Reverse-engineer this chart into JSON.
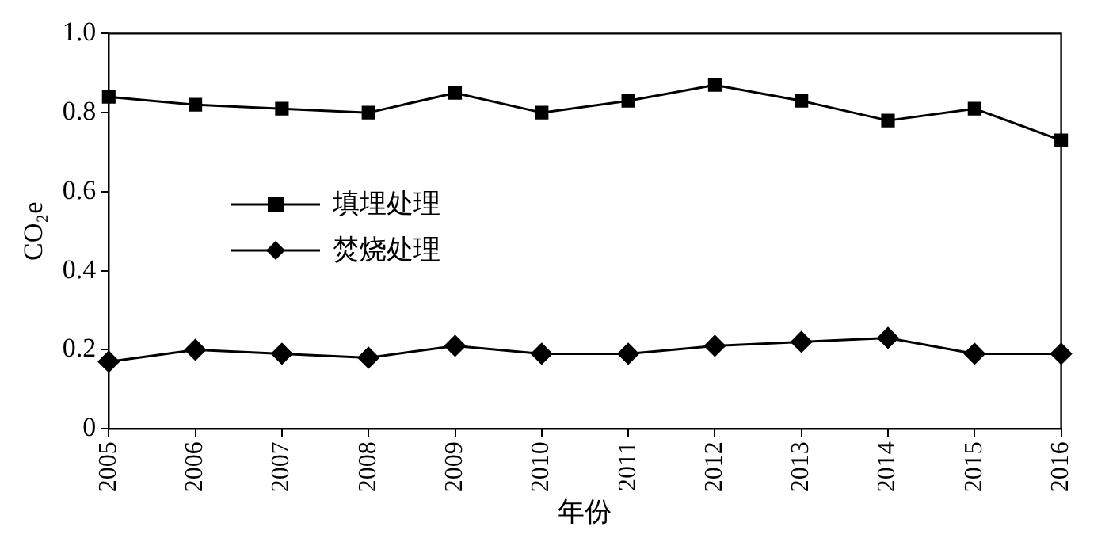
{
  "chart_data": {
    "type": "line",
    "xlabel": "年份",
    "ylabel": "CO₂e",
    "categories": [
      "2005",
      "2006",
      "2007",
      "2008",
      "2009",
      "2010",
      "2011",
      "2012",
      "2013",
      "2014",
      "2015",
      "2016"
    ],
    "ylim": [
      0,
      1.0
    ],
    "yticks": [
      0,
      {
        "value": 0.2,
        "label": "0.2"
      },
      {
        "value": 0.4,
        "label": "0.4"
      },
      {
        "value": 0.6,
        "label": "0.6"
      },
      {
        "value": 0.8,
        "label": "0.8"
      },
      {
        "value": 1.0,
        "label": "1.0"
      }
    ],
    "grid": false,
    "legend": "left",
    "line_style": "solid",
    "series": [
      {
        "name": "填埋处理",
        "color": "#000000",
        "marker": "square",
        "values": [
          0.84,
          0.82,
          0.81,
          0.8,
          0.85,
          0.8,
          0.83,
          0.87,
          0.83,
          0.78,
          0.81,
          0.73
        ]
      },
      {
        "name": "焚烧处理",
        "color": "#000000",
        "marker": "diamond",
        "values": [
          0.17,
          0.2,
          0.19,
          0.18,
          0.21,
          0.19,
          0.19,
          0.21,
          0.22,
          0.23,
          0.19,
          0.19
        ]
      }
    ]
  }
}
